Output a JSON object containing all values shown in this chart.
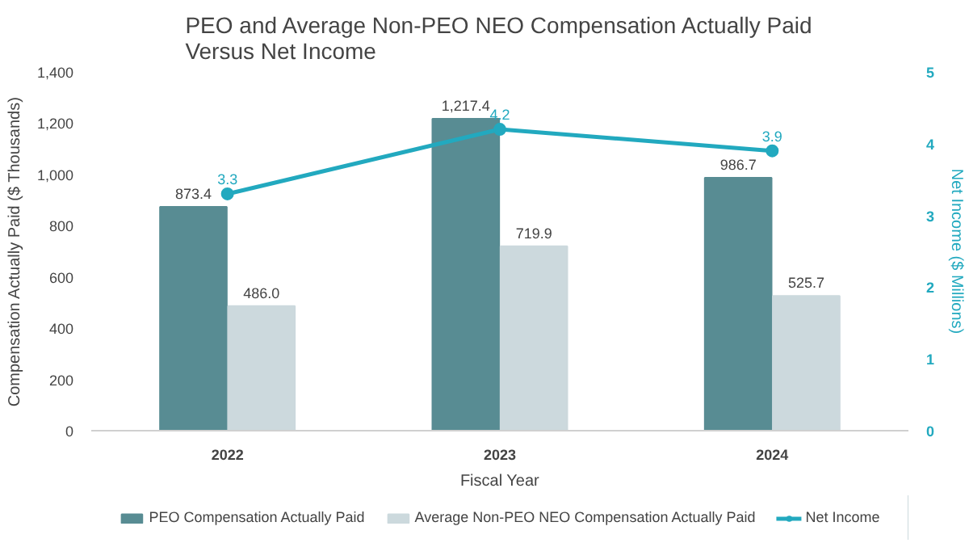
{
  "chart_data": {
    "type": "bar",
    "title": "PEO and Average Non-PEO NEO Compensation Actually Paid\nVersus Net Income",
    "xlabel": "Fiscal Year",
    "ylabel": "Compensation Actually Paid ($ Thousands)",
    "y2label": "Net Income ($ Millions)",
    "categories": [
      "2022",
      "2023",
      "2024"
    ],
    "series": [
      {
        "name": "PEO Compensation Actually Paid",
        "color": "#588c93",
        "values": [
          873.4,
          1217.4,
          986.7
        ],
        "value_labels": [
          "873.4",
          "1,217.4",
          "986.7"
        ]
      },
      {
        "name": "Average Non-PEO NEO Compensation Actually Paid",
        "color": "#ccd9dd",
        "values": [
          486.0,
          719.9,
          525.7
        ],
        "value_labels": [
          "486.0",
          "719.9",
          "525.7"
        ]
      },
      {
        "name": "Net Income",
        "type": "line",
        "axis": "y2",
        "color": "#22a9bf",
        "values": [
          3.3,
          4.2,
          3.9
        ],
        "value_labels": [
          "3.3",
          "4.2",
          "3.9"
        ],
        "marker": "circle"
      }
    ],
    "ylim": [
      0,
      1400
    ],
    "yticks": [
      0,
      {
        "value": 200,
        "label": "200"
      },
      {
        "value": 400,
        "label": "400"
      },
      {
        "value": 600,
        "label": "600"
      },
      {
        "value": 800,
        "label": "800"
      },
      {
        "value": 1000,
        "label": "1,000"
      },
      {
        "value": 1200,
        "label": "1,200"
      },
      {
        "value": 1400,
        "label": "1,400"
      }
    ],
    "y2lim": [
      0,
      5
    ],
    "y2ticks": [
      0,
      1,
      2,
      3,
      4,
      5
    ],
    "grid": false,
    "legend": "bottom"
  }
}
